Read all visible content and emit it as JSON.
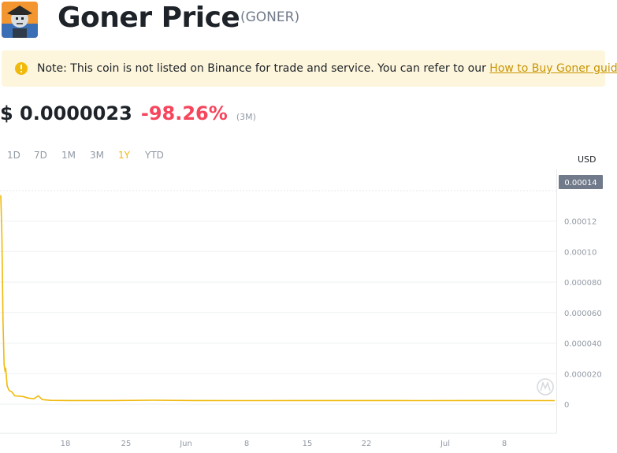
{
  "header": {
    "title": "Goner Price",
    "ticker": "(GONER)"
  },
  "notice": {
    "text": "Note: This coin is not listed on Binance for trade and service. You can refer to our ",
    "link_text": "How to Buy Goner guide",
    "suffix": "."
  },
  "price": {
    "value": "$ 0.0000023",
    "change": "-98.26%",
    "period": "(3M)"
  },
  "tabs": [
    {
      "label": "1D"
    },
    {
      "label": "7D"
    },
    {
      "label": "1M"
    },
    {
      "label": "3M"
    },
    {
      "label": "1Y",
      "active": true
    },
    {
      "label": "YTD"
    }
  ],
  "chart_data": {
    "type": "line",
    "unit": "USD",
    "current_value_label": "0.00014",
    "y_ticks": [
      "0.00014",
      "0.00012",
      "0.00010",
      "0.000080",
      "0.000060",
      "0.000040",
      "0.000020",
      "0"
    ],
    "x_ticks": [
      "18",
      "25",
      "Jun",
      "8",
      "15",
      "22",
      "Jul",
      "8"
    ],
    "ylim": [
      0,
      0.00014
    ],
    "series": [
      {
        "color": "#f0b90b",
        "points": [
          [
            0.0,
            0.000137
          ],
          [
            0.4,
            0.00011
          ],
          [
            0.8,
            5.5e-05
          ],
          [
            1.2,
            2.6e-05
          ],
          [
            1.5,
            2.2e-05
          ],
          [
            1.8,
            2.3e-05
          ],
          [
            2.3,
            1.2e-05
          ],
          [
            3.0,
            9e-06
          ],
          [
            4.0,
            8e-06
          ],
          [
            5.0,
            5.5e-06
          ],
          [
            8.0,
            5e-06
          ],
          [
            10.0,
            4e-06
          ],
          [
            12.0,
            3.5e-06
          ],
          [
            13.5,
            5.5e-06
          ],
          [
            15.0,
            3e-06
          ],
          [
            18.0,
            2.5e-06
          ],
          [
            25.0,
            2.4e-06
          ],
          [
            40.0,
            2.4e-06
          ],
          [
            55.0,
            2.6e-06
          ],
          [
            70.0,
            2.4e-06
          ],
          [
            90.0,
            2.3e-06
          ],
          [
            110.0,
            2.4e-06
          ],
          [
            130.0,
            2.4e-06
          ],
          [
            150.0,
            2.3e-06
          ],
          [
            170.0,
            2.4e-06
          ],
          [
            200.0,
            2.3e-06
          ]
        ]
      }
    ]
  }
}
